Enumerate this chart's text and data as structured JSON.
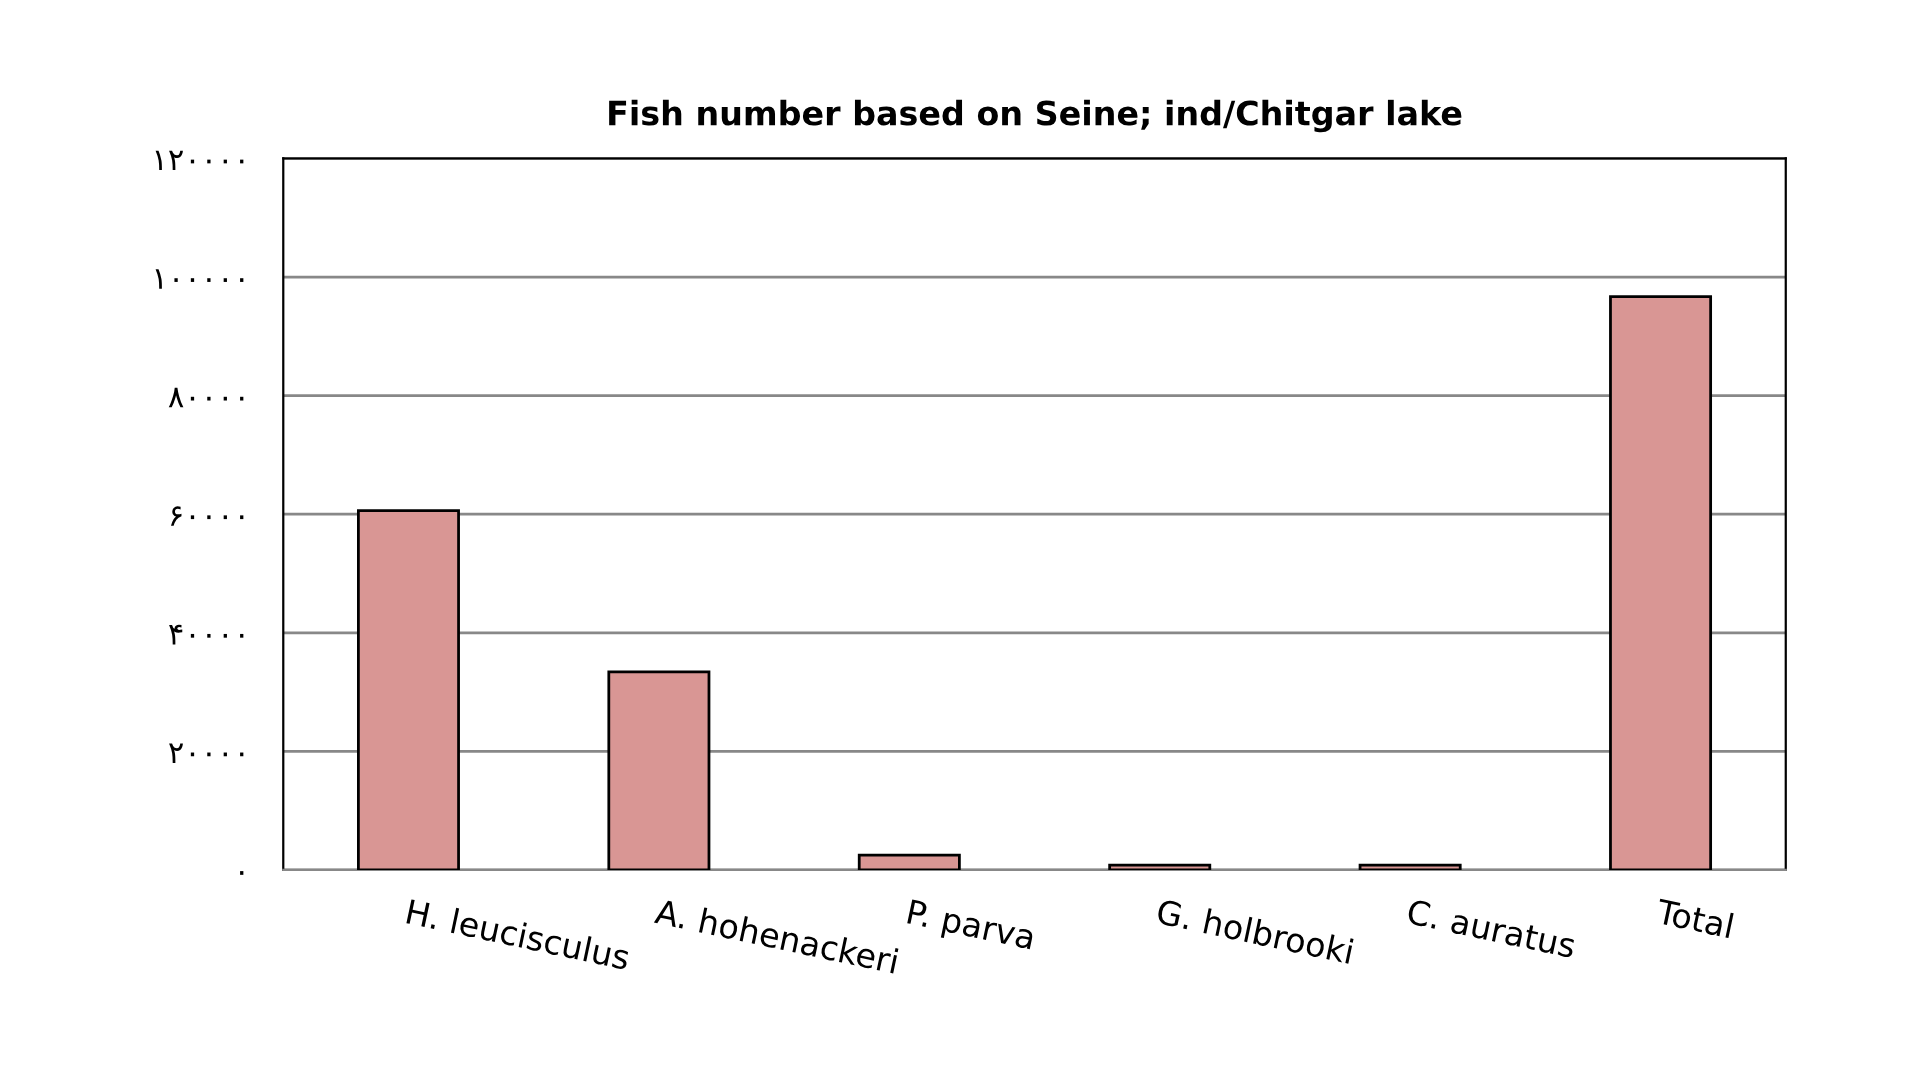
{
  "chart_data": {
    "type": "bar",
    "title": "Fish number based on Seine; ind/Chitgar lake",
    "categories": [
      "H. leucisculus",
      "A. hohenackeri",
      "P. parva",
      "G. holbrooki",
      "C. auratus",
      "Total"
    ],
    "values": [
      60600,
      33400,
      2500,
      800,
      800,
      96700
    ],
    "color": "#d99694",
    "ylim": [
      0,
      120000
    ],
    "yticks": [
      {
        "value": 0,
        "label": "۰"
      },
      {
        "value": 20000,
        "label": "۲۰۰۰۰"
      },
      {
        "value": 40000,
        "label": "۴۰۰۰۰"
      },
      {
        "value": 60000,
        "label": "۶۰۰۰۰"
      },
      {
        "value": 80000,
        "label": "۸۰۰۰۰"
      },
      {
        "value": 100000,
        "label": "۱۰۰۰۰۰"
      },
      {
        "value": 120000,
        "label": "۱۲۰۰۰۰"
      }
    ],
    "grid": "y",
    "legend": false
  }
}
